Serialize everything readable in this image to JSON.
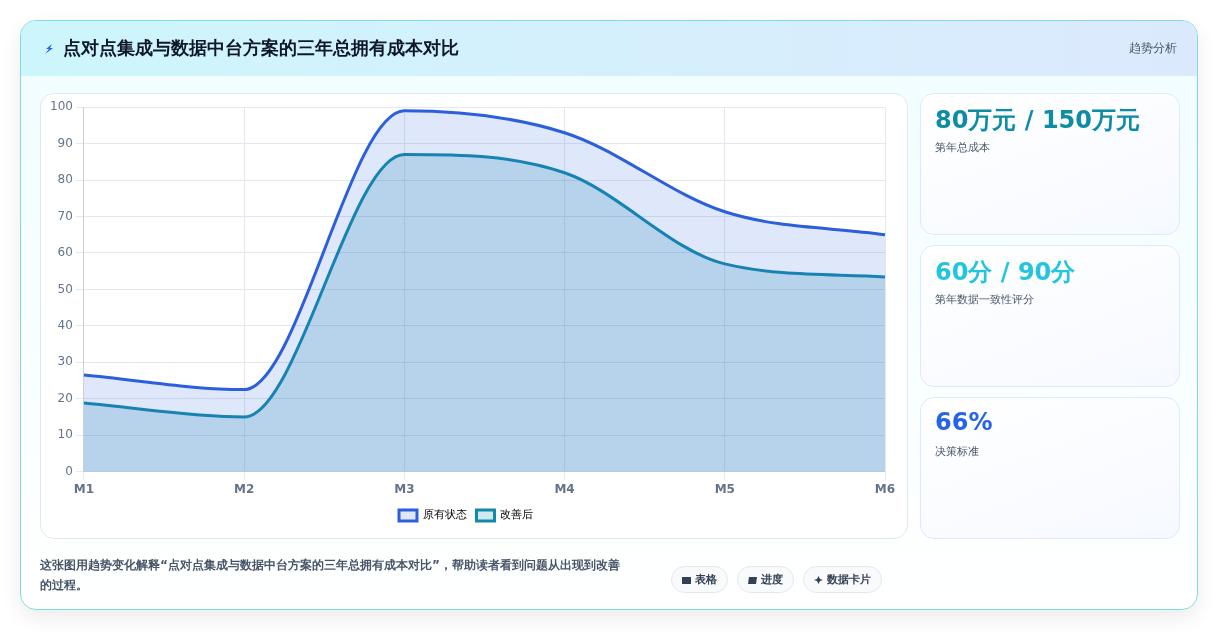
{
  "chart_data": {
    "type": "area",
    "title": "点对点集成与数据中台方案的三年总拥有成本对比",
    "subtitle": "趋势分析",
    "categories": [
      "M1",
      "M2",
      "M3",
      "M4",
      "M5",
      "M6"
    ],
    "series": [
      {
        "name": "原有状态",
        "color": "#2b5fdc",
        "values": [
          26.5,
          22.5,
          99,
          93,
          71.3,
          65
        ]
      },
      {
        "name": "改善后",
        "color": "#148aab",
        "values": [
          18.8,
          15,
          87,
          82,
          57,
          53.4
        ]
      }
    ],
    "ylim": [
      0,
      100
    ],
    "yticks": [
      0,
      10,
      20,
      30,
      40,
      50,
      60,
      70,
      80,
      90,
      100
    ],
    "grid": true,
    "legend": "bottom",
    "marker": "none",
    "annotations": [
      "80万元 / 150万元",
      "第年总成本",
      "60分 / 90分",
      "第年数据一致性评分",
      "66%",
      "决策标准",
      "这张图用趋势变化解释“点对点集成与数据中台方案的三年总拥有成本对比”，帮助读者看到问题从出现到改善的过程。",
      "表格",
      "进度",
      "数据卡片"
    ]
  }
}
